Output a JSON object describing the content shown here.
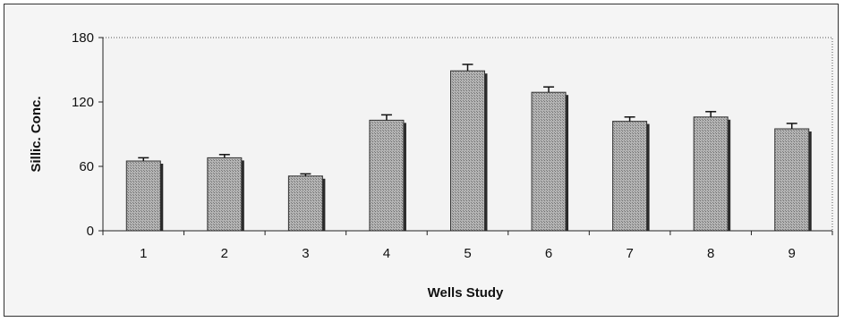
{
  "chart_data": {
    "type": "bar",
    "title": "",
    "xlabel": "Wells Study",
    "ylabel": "Sillic. Conc.",
    "categories": [
      "1",
      "2",
      "3",
      "4",
      "5",
      "6",
      "7",
      "8",
      "9"
    ],
    "values": [
      65,
      68,
      51,
      103,
      149,
      129,
      102,
      106,
      95
    ],
    "error": [
      3,
      3,
      2,
      5,
      6,
      5,
      4,
      5,
      5
    ],
    "ylim": [
      0,
      180
    ],
    "yticks": [
      "0",
      "60",
      "120",
      "180"
    ],
    "grid": false,
    "legend": "none"
  },
  "colors": {
    "bar": "#9a9a9a",
    "bar_shadow": "#2a2a2a",
    "plot_background": "#f3f3f3",
    "axis": "#222222"
  }
}
